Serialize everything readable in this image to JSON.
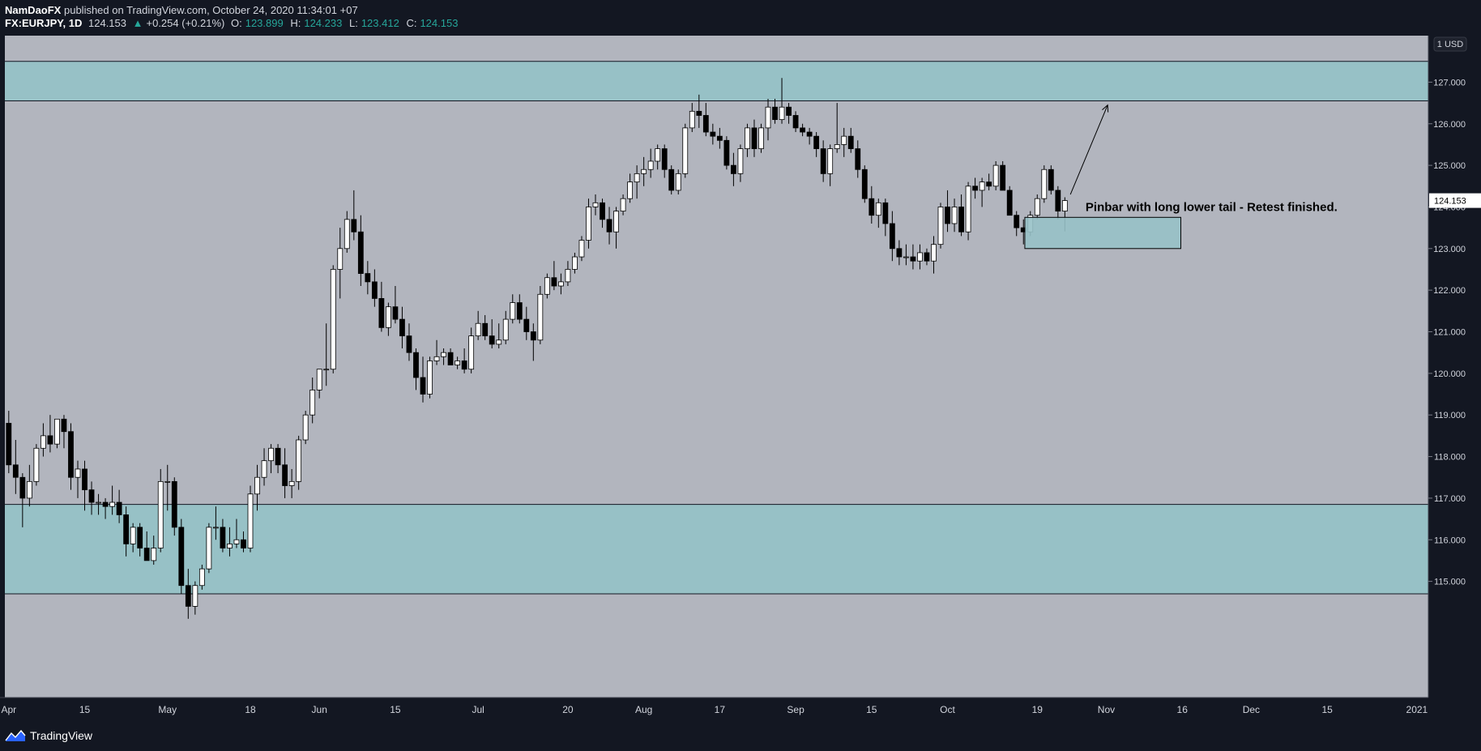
{
  "header": {
    "author": "NamDaoFX",
    "published_text": "published on TradingView.com, October 24, 2020 11:34:01 +07",
    "symbol": "FX:EURJPY, 1D",
    "last": "124.153",
    "change": "+0.254 (+0.21%)",
    "open_label": "O:",
    "open": "123.899",
    "high_label": "H:",
    "high": "124.233",
    "low_label": "L:",
    "low": "123.412",
    "close_label": "C:",
    "close": "124.153"
  },
  "footer": {
    "brand": "TradingView"
  },
  "colors": {
    "background": "#b2b5be",
    "zone": "#97c1c6",
    "bull_body": "#ffffff",
    "bear_body": "#000000",
    "frame": "#131722",
    "price_tag": "#ffffff"
  },
  "chart_data": {
    "type": "candlestick",
    "currency": "1 USD",
    "ylim": [
      114.6,
      128.2
    ],
    "y_ticks": [
      {
        "value": 127,
        "label": "127.000"
      },
      {
        "value": 126,
        "label": "126.000"
      },
      {
        "value": 125,
        "label": "125.000"
      },
      {
        "value": 124,
        "label": "124.000"
      },
      {
        "value": 123,
        "label": "123.000"
      },
      {
        "value": 122,
        "label": "122.000"
      },
      {
        "value": 121,
        "label": "121.000"
      },
      {
        "value": 120,
        "label": "120.000"
      },
      {
        "value": 119,
        "label": "119.000"
      },
      {
        "value": 118,
        "label": "118.000"
      },
      {
        "value": 117,
        "label": "117.000"
      },
      {
        "value": 116,
        "label": "116.000"
      },
      {
        "value": 115,
        "label": "115.000"
      }
    ],
    "x_ticks": [
      {
        "index": 0,
        "label": "Apr"
      },
      {
        "index": 11,
        "label": "15"
      },
      {
        "index": 23,
        "label": "May"
      },
      {
        "index": 35,
        "label": "18"
      },
      {
        "index": 45,
        "label": "Jun"
      },
      {
        "index": 56,
        "label": "15"
      },
      {
        "index": 68,
        "label": "Jul"
      },
      {
        "index": 81,
        "label": "20"
      },
      {
        "index": 92,
        "label": "Aug"
      },
      {
        "index": 103,
        "label": "17"
      },
      {
        "index": 114,
        "label": "Sep"
      },
      {
        "index": 125,
        "label": "15"
      },
      {
        "index": 136,
        "label": "Oct"
      },
      {
        "index": 149,
        "label": "19"
      },
      {
        "index": 159,
        "label": "Nov"
      },
      {
        "index": 170,
        "label": "16"
      },
      {
        "index": 180,
        "label": "Dec"
      },
      {
        "index": 191,
        "label": "15"
      },
      {
        "index": 204,
        "label": "2021"
      }
    ],
    "last_price": {
      "value": 124.153,
      "label": "124.153"
    },
    "zones": [
      {
        "top": 127.5,
        "bottom": 126.55
      },
      {
        "top": 116.85,
        "bottom": 114.7
      }
    ],
    "box": {
      "x1": 147.2,
      "x2": 169.8,
      "top": 123.75,
      "bottom": 123.0
    },
    "arrow": {
      "x1": 153.8,
      "y1": 124.3,
      "x2": 159.2,
      "y2": 126.45
    },
    "annotation": {
      "text": "Pinbar with long lower tail - Retest finished.",
      "x": 156,
      "y": 124.0
    },
    "candles": [
      [
        118.8,
        119.1,
        117.6,
        117.8
      ],
      [
        117.8,
        118.4,
        117.1,
        117.5
      ],
      [
        117.5,
        117.6,
        116.3,
        117.0
      ],
      [
        117.0,
        117.8,
        116.8,
        117.4
      ],
      [
        117.4,
        118.3,
        117.3,
        118.2
      ],
      [
        118.2,
        118.8,
        118.0,
        118.5
      ],
      [
        118.5,
        119.0,
        118.1,
        118.3
      ],
      [
        118.3,
        118.9,
        118.2,
        118.9
      ],
      [
        118.9,
        119.0,
        118.2,
        118.6
      ],
      [
        118.6,
        118.8,
        117.2,
        117.5
      ],
      [
        117.5,
        117.9,
        117.0,
        117.7
      ],
      [
        117.7,
        117.9,
        116.7,
        117.2
      ],
      [
        117.2,
        117.4,
        116.6,
        116.9
      ],
      [
        116.9,
        117.1,
        116.6,
        116.9
      ],
      [
        116.9,
        117.0,
        116.5,
        116.8
      ],
      [
        116.8,
        117.3,
        116.6,
        116.9
      ],
      [
        116.9,
        117.2,
        116.4,
        116.6
      ],
      [
        116.6,
        116.8,
        115.6,
        115.9
      ],
      [
        115.9,
        116.4,
        115.7,
        116.3
      ],
      [
        116.3,
        116.4,
        115.6,
        115.8
      ],
      [
        115.8,
        116.2,
        115.5,
        115.5
      ],
      [
        115.5,
        116.1,
        115.4,
        115.8
      ],
      [
        115.8,
        117.7,
        115.7,
        117.4
      ],
      [
        117.4,
        117.8,
        116.7,
        117.4
      ],
      [
        117.4,
        117.5,
        116.1,
        116.3
      ],
      [
        116.3,
        116.5,
        114.7,
        114.9
      ],
      [
        114.9,
        115.3,
        114.1,
        114.4
      ],
      [
        114.4,
        115.0,
        114.2,
        114.9
      ],
      [
        114.9,
        115.4,
        114.8,
        115.3
      ],
      [
        115.3,
        116.4,
        115.2,
        116.3
      ],
      [
        116.3,
        116.8,
        116.0,
        116.3
      ],
      [
        116.3,
        116.5,
        115.7,
        115.8
      ],
      [
        115.8,
        116.3,
        115.6,
        115.9
      ],
      [
        115.9,
        116.5,
        115.8,
        116.0
      ],
      [
        116.0,
        116.2,
        115.7,
        115.8
      ],
      [
        115.8,
        117.3,
        115.7,
        117.1
      ],
      [
        117.1,
        117.8,
        116.7,
        117.5
      ],
      [
        117.5,
        118.2,
        117.3,
        117.9
      ],
      [
        117.9,
        118.3,
        117.6,
        118.2
      ],
      [
        118.2,
        118.3,
        117.6,
        117.8
      ],
      [
        117.8,
        118.2,
        117.0,
        117.3
      ],
      [
        117.3,
        117.7,
        117.0,
        117.4
      ],
      [
        117.4,
        118.5,
        117.2,
        118.4
      ],
      [
        118.4,
        119.1,
        118.3,
        119.0
      ],
      [
        119.0,
        119.9,
        118.8,
        119.6
      ],
      [
        119.6,
        120.1,
        119.4,
        120.1
      ],
      [
        120.1,
        121.2,
        119.7,
        120.1
      ],
      [
        120.1,
        122.6,
        120.0,
        122.5
      ],
      [
        122.5,
        123.5,
        121.8,
        123.0
      ],
      [
        123.0,
        123.9,
        122.9,
        123.7
      ],
      [
        123.7,
        124.4,
        123.2,
        123.4
      ],
      [
        123.4,
        123.8,
        122.1,
        122.4
      ],
      [
        122.4,
        122.7,
        121.9,
        122.2
      ],
      [
        122.2,
        122.5,
        121.6,
        121.8
      ],
      [
        121.8,
        122.2,
        121.0,
        121.1
      ],
      [
        121.1,
        121.7,
        120.9,
        121.6
      ],
      [
        121.6,
        122.1,
        121.2,
        121.3
      ],
      [
        121.3,
        121.6,
        120.6,
        120.9
      ],
      [
        120.9,
        121.2,
        120.3,
        120.5
      ],
      [
        120.5,
        120.6,
        119.6,
        119.9
      ],
      [
        119.9,
        120.4,
        119.3,
        119.5
      ],
      [
        119.5,
        120.4,
        119.4,
        120.3
      ],
      [
        120.3,
        120.8,
        120.2,
        120.4
      ],
      [
        120.4,
        120.6,
        120.2,
        120.5
      ],
      [
        120.5,
        120.6,
        120.2,
        120.2
      ],
      [
        120.2,
        120.4,
        120.1,
        120.3
      ],
      [
        120.3,
        120.6,
        120.0,
        120.1
      ],
      [
        120.1,
        121.1,
        120.0,
        120.9
      ],
      [
        120.9,
        121.5,
        120.8,
        121.2
      ],
      [
        121.2,
        121.4,
        120.8,
        120.9
      ],
      [
        120.9,
        121.3,
        120.6,
        120.7
      ],
      [
        120.7,
        121.2,
        120.6,
        120.8
      ],
      [
        120.8,
        121.5,
        120.7,
        121.3
      ],
      [
        121.3,
        121.9,
        121.2,
        121.7
      ],
      [
        121.7,
        121.9,
        121.2,
        121.3
      ],
      [
        121.3,
        121.6,
        120.8,
        121.0
      ],
      [
        121.0,
        121.2,
        120.3,
        120.8
      ],
      [
        120.8,
        122.1,
        120.7,
        121.9
      ],
      [
        121.9,
        122.4,
        121.8,
        122.3
      ],
      [
        122.3,
        122.7,
        122.0,
        122.1
      ],
      [
        122.1,
        122.4,
        121.9,
        122.2
      ],
      [
        122.2,
        122.7,
        122.1,
        122.5
      ],
      [
        122.5,
        122.9,
        122.4,
        122.8
      ],
      [
        122.8,
        123.3,
        122.7,
        123.2
      ],
      [
        123.2,
        124.2,
        123.0,
        124.0
      ],
      [
        124.0,
        124.3,
        123.8,
        124.1
      ],
      [
        124.1,
        124.2,
        123.5,
        123.7
      ],
      [
        123.7,
        124.0,
        123.1,
        123.4
      ],
      [
        123.4,
        124.0,
        123.0,
        123.9
      ],
      [
        123.9,
        124.3,
        123.8,
        124.2
      ],
      [
        124.2,
        124.8,
        124.1,
        124.6
      ],
      [
        124.6,
        125.0,
        124.2,
        124.8
      ],
      [
        124.8,
        125.2,
        124.5,
        124.9
      ],
      [
        124.9,
        125.4,
        124.7,
        125.1
      ],
      [
        125.1,
        125.5,
        124.9,
        125.4
      ],
      [
        125.4,
        125.5,
        124.7,
        124.9
      ],
      [
        124.9,
        125.0,
        124.3,
        124.4
      ],
      [
        124.4,
        124.9,
        124.3,
        124.8
      ],
      [
        124.8,
        126.0,
        124.7,
        125.9
      ],
      [
        125.9,
        126.5,
        125.8,
        126.3
      ],
      [
        126.3,
        126.7,
        125.9,
        126.2
      ],
      [
        126.2,
        126.5,
        125.7,
        125.8
      ],
      [
        125.8,
        126.0,
        125.5,
        125.7
      ],
      [
        125.7,
        125.9,
        125.4,
        125.6
      ],
      [
        125.6,
        125.7,
        124.9,
        125.0
      ],
      [
        125.0,
        125.3,
        124.5,
        124.8
      ],
      [
        124.8,
        125.5,
        124.6,
        125.4
      ],
      [
        125.4,
        126.0,
        125.2,
        125.9
      ],
      [
        125.9,
        126.1,
        125.2,
        125.4
      ],
      [
        125.4,
        126.0,
        125.3,
        125.9
      ],
      [
        125.9,
        126.6,
        125.6,
        126.4
      ],
      [
        126.4,
        126.6,
        126.0,
        126.1
      ],
      [
        126.1,
        127.1,
        126.0,
        126.4
      ],
      [
        126.4,
        126.5,
        126.0,
        126.2
      ],
      [
        126.2,
        126.3,
        125.8,
        125.9
      ],
      [
        125.9,
        126.0,
        125.7,
        125.8
      ],
      [
        125.8,
        125.9,
        125.5,
        125.7
      ],
      [
        125.7,
        125.8,
        125.2,
        125.4
      ],
      [
        125.4,
        125.6,
        124.6,
        124.8
      ],
      [
        124.8,
        125.5,
        124.5,
        125.4
      ],
      [
        125.4,
        126.5,
        125.3,
        125.5
      ],
      [
        125.5,
        125.9,
        125.2,
        125.7
      ],
      [
        125.7,
        125.9,
        125.3,
        125.4
      ],
      [
        125.4,
        125.6,
        124.7,
        124.9
      ],
      [
        124.9,
        125.0,
        124.1,
        124.2
      ],
      [
        124.2,
        124.5,
        123.6,
        123.8
      ],
      [
        123.8,
        124.2,
        123.5,
        124.1
      ],
      [
        124.1,
        124.2,
        123.3,
        123.6
      ],
      [
        123.6,
        123.9,
        122.7,
        123.0
      ],
      [
        123.0,
        123.2,
        122.6,
        122.8
      ],
      [
        122.8,
        123.1,
        122.6,
        122.8
      ],
      [
        122.8,
        123.1,
        122.5,
        122.7
      ],
      [
        122.7,
        123.1,
        122.5,
        122.9
      ],
      [
        122.9,
        123.0,
        122.6,
        122.7
      ],
      [
        122.7,
        123.3,
        122.4,
        123.1
      ],
      [
        123.1,
        124.1,
        123.0,
        124.0
      ],
      [
        124.0,
        124.4,
        123.4,
        123.6
      ],
      [
        123.6,
        124.2,
        123.4,
        124.0
      ],
      [
        124.0,
        124.3,
        123.3,
        123.4
      ],
      [
        123.4,
        124.6,
        123.2,
        124.5
      ],
      [
        124.5,
        124.7,
        124.2,
        124.4
      ],
      [
        124.4,
        124.7,
        124.0,
        124.6
      ],
      [
        124.6,
        124.8,
        124.4,
        124.5
      ],
      [
        124.5,
        125.1,
        124.4,
        125.0
      ],
      [
        125.0,
        125.1,
        124.4,
        124.4
      ],
      [
        124.4,
        124.5,
        123.8,
        123.8
      ],
      [
        123.8,
        123.9,
        123.3,
        123.5
      ],
      [
        123.5,
        123.7,
        123.1,
        123.4
      ],
      [
        123.4,
        123.9,
        123.3,
        123.8
      ],
      [
        123.8,
        124.3,
        123.7,
        124.2
      ],
      [
        124.2,
        125.0,
        124.1,
        124.9
      ],
      [
        124.9,
        125.0,
        124.3,
        124.4
      ],
      [
        124.4,
        124.5,
        123.7,
        123.9
      ],
      [
        123.9,
        124.233,
        123.412,
        124.153
      ]
    ]
  }
}
